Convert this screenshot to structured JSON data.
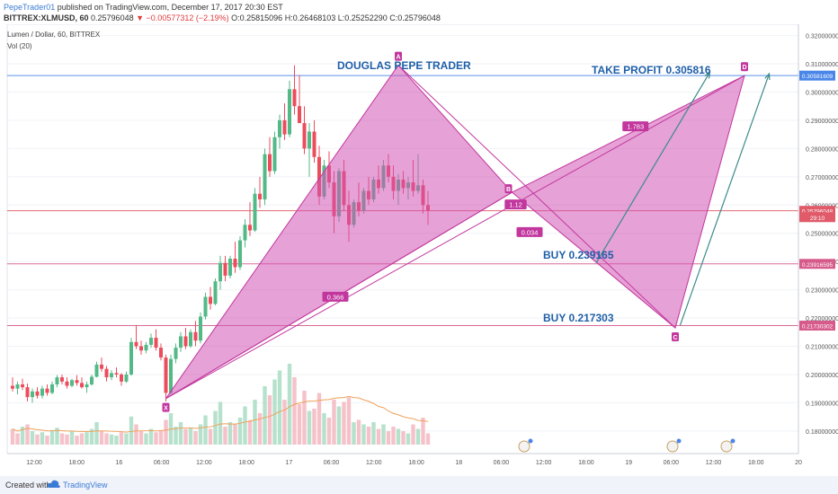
{
  "header": {
    "author": "PepeTrader01",
    "published": "published on TradingView.com, December 17, 2017 20:30 EST",
    "symbol": "BITTREX:XLMUSD, 60",
    "last": "0.25796048",
    "change_arrow": "▼",
    "change": "−0.00577312 (−2.19%)",
    "ohlc": "O:0.25815096 H:0.26468103 L:0.25252290 C:0.25796048"
  },
  "legend": {
    "instrument": "Lumen / Dollar, 60, BITTREX",
    "indicator": "Vol (20)"
  },
  "annotations": {
    "title": "DOUGLAS PEPE TRADER",
    "take_profit": "TAKE PROFIT 0.305816",
    "buy1": "BUY 0.239165",
    "buy2": "BUY 0.217303",
    "points": [
      "X",
      "A",
      "B",
      "C",
      "D"
    ],
    "ratios": [
      "0.366",
      "0.034",
      "1.783",
      "1.12"
    ]
  },
  "footer": {
    "created_with": "Created with",
    "brand": "TradingView"
  },
  "colors": {
    "pattern_fill": "#d154b4",
    "pattern_stroke": "#c2379e",
    "up_candle": "#53b987",
    "down_candle": "#eb4d5c",
    "blue_line": "#4a86e8",
    "pink_line": "#d67aa6",
    "label_color": "#1f5fa8"
  },
  "chart_data": {
    "type": "candlestick",
    "y_axis": {
      "ticks": [
        "0.32000000",
        "0.31000000",
        "0.30000000",
        "0.29000000",
        "0.28000000",
        "0.27000000",
        "0.26000000",
        "0.25000000",
        "0.24000000",
        "0.23000000",
        "0.22000000",
        "0.21000000",
        "0.20000000",
        "0.19000000",
        "0.18000000"
      ],
      "range": [
        0.172,
        0.324
      ]
    },
    "x_axis": {
      "ticks": [
        "12:00",
        "18:00",
        "16",
        "06:00",
        "12:00",
        "18:00",
        "17",
        "06:00",
        "12:00",
        "18:00",
        "18",
        "06:00",
        "12:00",
        "18:00",
        "19",
        "06:00",
        "12:00",
        "18:00",
        "20"
      ]
    },
    "price_tags": [
      {
        "label": "0.30581609",
        "value": 0.305816,
        "color": "#4a86e8"
      },
      {
        "label": "0.25796048",
        "value": 0.25796,
        "color": "#e05a6a"
      },
      {
        "label": "29:10",
        "value": 0.2557,
        "color": "#e05a6a"
      },
      {
        "label": "0.23916595",
        "value": 0.239166,
        "color": "#d65a8a"
      },
      {
        "label": "0.21730302",
        "value": 0.217303,
        "color": "#d65a8a"
      }
    ],
    "harmonic": {
      "X": {
        "x": 31,
        "y": 0.1915
      },
      "A": {
        "x": 78,
        "y": 0.3095
      },
      "B": {
        "x": 101,
        "y": 0.2645
      },
      "C": {
        "x": 134,
        "y": 0.2165
      },
      "D": {
        "x": 148,
        "y": 0.3058
      }
    },
    "candles": [
      [
        0,
        0.196,
        0.199,
        0.194,
        0.195
      ],
      [
        1,
        0.195,
        0.1975,
        0.193,
        0.1965
      ],
      [
        2,
        0.1965,
        0.1985,
        0.1945,
        0.1955
      ],
      [
        3,
        0.1955,
        0.1968,
        0.1905,
        0.192
      ],
      [
        4,
        0.192,
        0.195,
        0.19,
        0.194
      ],
      [
        5,
        0.194,
        0.1955,
        0.1915,
        0.1925
      ],
      [
        6,
        0.1925,
        0.196,
        0.1915,
        0.195
      ],
      [
        7,
        0.195,
        0.1965,
        0.1925,
        0.1935
      ],
      [
        8,
        0.1935,
        0.1975,
        0.193,
        0.1965
      ],
      [
        9,
        0.1965,
        0.1998,
        0.1955,
        0.199
      ],
      [
        10,
        0.199,
        0.2,
        0.1965,
        0.1975
      ],
      [
        11,
        0.1975,
        0.199,
        0.195,
        0.196
      ],
      [
        12,
        0.196,
        0.1985,
        0.1955,
        0.198
      ],
      [
        13,
        0.198,
        0.1998,
        0.196,
        0.197
      ],
      [
        14,
        0.197,
        0.199,
        0.195,
        0.1955
      ],
      [
        15,
        0.1955,
        0.1975,
        0.1935,
        0.1965
      ],
      [
        16,
        0.1965,
        0.2,
        0.196,
        0.1992
      ],
      [
        17,
        0.1992,
        0.2045,
        0.199,
        0.2035
      ],
      [
        18,
        0.2035,
        0.206,
        0.201,
        0.202
      ],
      [
        19,
        0.202,
        0.203,
        0.1975,
        0.199
      ],
      [
        20,
        0.199,
        0.2015,
        0.198,
        0.2005
      ],
      [
        21,
        0.2005,
        0.2025,
        0.199,
        0.2
      ],
      [
        22,
        0.2,
        0.2005,
        0.196,
        0.1975
      ],
      [
        23,
        0.1975,
        0.201,
        0.197,
        0.2
      ],
      [
        24,
        0.2,
        0.213,
        0.1995,
        0.2115
      ],
      [
        25,
        0.2115,
        0.2175,
        0.209,
        0.21
      ],
      [
        26,
        0.21,
        0.212,
        0.207,
        0.2085
      ],
      [
        27,
        0.2085,
        0.2115,
        0.2075,
        0.2105
      ],
      [
        28,
        0.2105,
        0.2145,
        0.2095,
        0.213
      ],
      [
        29,
        0.213,
        0.216,
        0.2085,
        0.2095
      ],
      [
        30,
        0.2095,
        0.211,
        0.205,
        0.206
      ],
      [
        31,
        0.206,
        0.207,
        0.1905,
        0.1935
      ],
      [
        32,
        0.1935,
        0.207,
        0.193,
        0.2055
      ],
      [
        33,
        0.2055,
        0.211,
        0.204,
        0.2095
      ],
      [
        34,
        0.2095,
        0.215,
        0.208,
        0.2135
      ],
      [
        35,
        0.2135,
        0.2165,
        0.209,
        0.21
      ],
      [
        36,
        0.21,
        0.216,
        0.2095,
        0.215
      ],
      [
        37,
        0.215,
        0.219,
        0.21,
        0.212
      ],
      [
        38,
        0.212,
        0.222,
        0.211,
        0.2205
      ],
      [
        39,
        0.2205,
        0.229,
        0.2195,
        0.2275
      ],
      [
        40,
        0.2275,
        0.231,
        0.223,
        0.225
      ],
      [
        41,
        0.225,
        0.234,
        0.2245,
        0.233
      ],
      [
        42,
        0.233,
        0.242,
        0.23,
        0.2395
      ],
      [
        43,
        0.2395,
        0.242,
        0.233,
        0.235
      ],
      [
        44,
        0.235,
        0.242,
        0.234,
        0.241
      ],
      [
        45,
        0.241,
        0.247,
        0.236,
        0.238
      ],
      [
        46,
        0.238,
        0.249,
        0.237,
        0.2475
      ],
      [
        47,
        0.2475,
        0.255,
        0.245,
        0.253
      ],
      [
        48,
        0.253,
        0.261,
        0.249,
        0.251
      ],
      [
        49,
        0.251,
        0.266,
        0.2505,
        0.264
      ],
      [
        50,
        0.264,
        0.27,
        0.259,
        0.262
      ],
      [
        51,
        0.262,
        0.28,
        0.26,
        0.278
      ],
      [
        52,
        0.278,
        0.284,
        0.27,
        0.272
      ],
      [
        53,
        0.272,
        0.286,
        0.271,
        0.284
      ],
      [
        54,
        0.284,
        0.292,
        0.28,
        0.29
      ],
      [
        55,
        0.29,
        0.296,
        0.283,
        0.285
      ],
      [
        56,
        0.285,
        0.304,
        0.284,
        0.301
      ],
      [
        57,
        0.301,
        0.3095,
        0.292,
        0.295
      ],
      [
        58,
        0.295,
        0.306,
        0.29,
        0.289
      ],
      [
        59,
        0.289,
        0.295,
        0.278,
        0.28
      ],
      [
        60,
        0.28,
        0.289,
        0.27,
        0.286
      ],
      [
        61,
        0.286,
        0.29,
        0.275,
        0.277
      ],
      [
        62,
        0.277,
        0.281,
        0.26,
        0.263
      ],
      [
        63,
        0.263,
        0.276,
        0.262,
        0.274
      ],
      [
        64,
        0.274,
        0.279,
        0.266,
        0.268
      ],
      [
        65,
        0.268,
        0.272,
        0.25,
        0.256
      ],
      [
        66,
        0.256,
        0.273,
        0.254,
        0.272
      ],
      [
        67,
        0.272,
        0.276,
        0.258,
        0.26
      ],
      [
        68,
        0.26,
        0.265,
        0.247,
        0.253
      ],
      [
        69,
        0.253,
        0.262,
        0.252,
        0.261
      ],
      [
        70,
        0.261,
        0.268,
        0.256,
        0.258
      ],
      [
        71,
        0.258,
        0.266,
        0.257,
        0.265
      ],
      [
        72,
        0.265,
        0.27,
        0.26,
        0.262
      ],
      [
        73,
        0.262,
        0.27,
        0.261,
        0.269
      ],
      [
        74,
        0.269,
        0.274,
        0.264,
        0.266
      ],
      [
        75,
        0.266,
        0.276,
        0.265,
        0.274
      ],
      [
        76,
        0.274,
        0.278,
        0.268,
        0.27
      ],
      [
        77,
        0.27,
        0.274,
        0.262,
        0.265
      ],
      [
        78,
        0.265,
        0.271,
        0.26,
        0.269
      ],
      [
        79,
        0.269,
        0.272,
        0.264,
        0.266
      ],
      [
        80,
        0.266,
        0.27,
        0.262,
        0.268
      ],
      [
        81,
        0.268,
        0.276,
        0.263,
        0.265
      ],
      [
        82,
        0.265,
        0.278,
        0.264,
        0.267
      ],
      [
        83,
        0.267,
        0.269,
        0.257,
        0.26
      ],
      [
        84,
        0.26,
        0.265,
        0.253,
        0.258
      ]
    ],
    "volume": [
      [
        0,
        14,
        "down"
      ],
      [
        1,
        10,
        "down"
      ],
      [
        2,
        16,
        "up"
      ],
      [
        3,
        18,
        "down"
      ],
      [
        4,
        12,
        "up"
      ],
      [
        5,
        9,
        "down"
      ],
      [
        6,
        11,
        "up"
      ],
      [
        7,
        8,
        "down"
      ],
      [
        8,
        13,
        "up"
      ],
      [
        9,
        15,
        "up"
      ],
      [
        10,
        10,
        "down"
      ],
      [
        11,
        9,
        "down"
      ],
      [
        12,
        12,
        "up"
      ],
      [
        13,
        8,
        "down"
      ],
      [
        14,
        10,
        "down"
      ],
      [
        15,
        11,
        "up"
      ],
      [
        16,
        14,
        "up"
      ],
      [
        17,
        20,
        "up"
      ],
      [
        18,
        12,
        "down"
      ],
      [
        19,
        10,
        "down"
      ],
      [
        20,
        9,
        "up"
      ],
      [
        21,
        8,
        "up"
      ],
      [
        22,
        11,
        "down"
      ],
      [
        23,
        10,
        "up"
      ],
      [
        24,
        25,
        "up"
      ],
      [
        25,
        18,
        "down"
      ],
      [
        26,
        12,
        "down"
      ],
      [
        27,
        10,
        "up"
      ],
      [
        28,
        14,
        "up"
      ],
      [
        29,
        11,
        "down"
      ],
      [
        30,
        13,
        "down"
      ],
      [
        31,
        22,
        "down"
      ],
      [
        32,
        28,
        "up"
      ],
      [
        33,
        16,
        "up"
      ],
      [
        34,
        20,
        "up"
      ],
      [
        35,
        14,
        "down"
      ],
      [
        36,
        15,
        "up"
      ],
      [
        37,
        12,
        "down"
      ],
      [
        38,
        18,
        "up"
      ],
      [
        39,
        26,
        "up"
      ],
      [
        40,
        14,
        "down"
      ],
      [
        41,
        30,
        "up"
      ],
      [
        42,
        38,
        "up"
      ],
      [
        43,
        16,
        "down"
      ],
      [
        44,
        20,
        "up"
      ],
      [
        45,
        18,
        "down"
      ],
      [
        46,
        24,
        "up"
      ],
      [
        47,
        34,
        "up"
      ],
      [
        48,
        22,
        "down"
      ],
      [
        49,
        40,
        "up"
      ],
      [
        50,
        28,
        "down"
      ],
      [
        51,
        52,
        "up"
      ],
      [
        52,
        44,
        "down"
      ],
      [
        53,
        58,
        "up"
      ],
      [
        54,
        66,
        "up"
      ],
      [
        55,
        40,
        "down"
      ],
      [
        56,
        72,
        "up"
      ],
      [
        57,
        60,
        "down"
      ],
      [
        58,
        36,
        "down"
      ],
      [
        59,
        48,
        "down"
      ],
      [
        60,
        30,
        "up"
      ],
      [
        61,
        32,
        "down"
      ],
      [
        62,
        46,
        "down"
      ],
      [
        63,
        28,
        "up"
      ],
      [
        64,
        24,
        "down"
      ],
      [
        65,
        40,
        "down"
      ],
      [
        66,
        34,
        "up"
      ],
      [
        67,
        38,
        "down"
      ],
      [
        68,
        42,
        "down"
      ],
      [
        69,
        20,
        "up"
      ],
      [
        70,
        22,
        "down"
      ],
      [
        71,
        18,
        "up"
      ],
      [
        72,
        16,
        "down"
      ],
      [
        73,
        20,
        "up"
      ],
      [
        74,
        14,
        "down"
      ],
      [
        75,
        18,
        "up"
      ],
      [
        76,
        12,
        "down"
      ],
      [
        77,
        16,
        "down"
      ],
      [
        78,
        14,
        "up"
      ],
      [
        79,
        12,
        "down"
      ],
      [
        80,
        10,
        "up"
      ],
      [
        81,
        18,
        "down"
      ],
      [
        82,
        14,
        "up"
      ],
      [
        83,
        24,
        "down"
      ],
      [
        84,
        10,
        "down"
      ]
    ]
  }
}
